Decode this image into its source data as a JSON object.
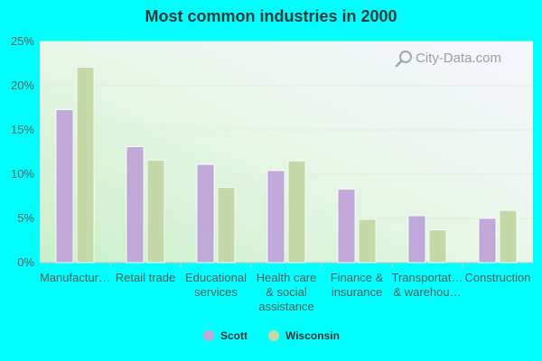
{
  "background_color": "#00ffff",
  "chart_data": {
    "type": "bar",
    "title": "Most common industries in 2000",
    "categories": [
      [
        "Manufactur…"
      ],
      [
        "Retail trade"
      ],
      [
        "Educational",
        "services"
      ],
      [
        "Health care",
        "& social",
        "assistance"
      ],
      [
        "Finance &",
        "insurance"
      ],
      [
        "Transportat…",
        "& warehou…"
      ],
      [
        "Construction"
      ]
    ],
    "series": [
      {
        "name": "Scott",
        "color": "#c0a8d8",
        "values": [
          17.3,
          13.1,
          11.1,
          10.4,
          8.3,
          5.3,
          5.0
        ]
      },
      {
        "name": "Wisconsin",
        "color": "#c4d8a8",
        "values": [
          22.1,
          11.6,
          8.5,
          11.5,
          4.9,
          3.7,
          5.9
        ]
      }
    ],
    "ylim": [
      0,
      25
    ],
    "yticks": [
      0,
      5,
      10,
      15,
      20,
      25
    ],
    "ytick_labels": [
      "0%",
      "5%",
      "10%",
      "15%",
      "20%",
      "25%"
    ],
    "grid": true,
    "legend_position": "bottom-center"
  },
  "watermark": {
    "text": "City-Data.com",
    "icon": "magnifier-icon"
  }
}
